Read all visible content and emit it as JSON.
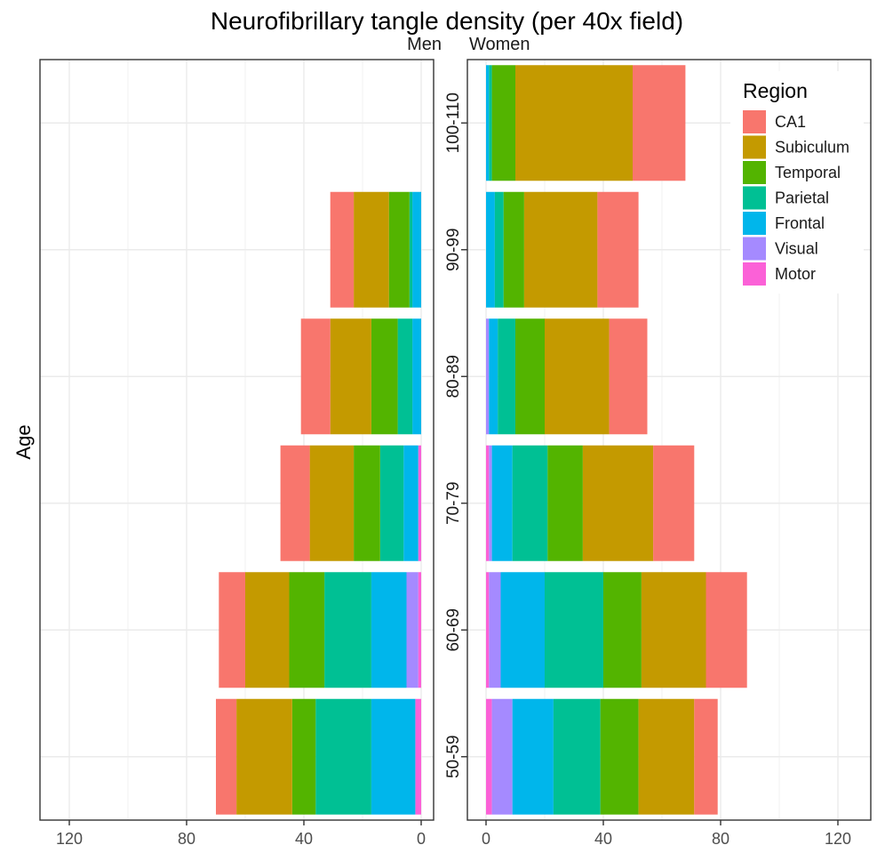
{
  "chart_data": {
    "type": "bar",
    "orientation": "horizontal-stacked-pyramid",
    "title": "Neurofibrillary tangle density (per 40x field)",
    "ylabel": "Age",
    "xlim": [
      0,
      130
    ],
    "xticks": [
      0,
      40,
      80,
      120
    ],
    "grid": true,
    "legend_position": "top-right inside Women panel",
    "legend_title": "Region",
    "categories": [
      "50-59",
      "60-69",
      "70-79",
      "80-89",
      "90-99",
      "100-110"
    ],
    "panels": [
      {
        "name": "Men",
        "direction": "left",
        "series": [
          {
            "name": "Motor",
            "values": [
              2,
              1,
              1,
              0,
              0,
              0
            ]
          },
          {
            "name": "Visual",
            "values": [
              0,
              4,
              0,
              0,
              0,
              0
            ]
          },
          {
            "name": "Frontal",
            "values": [
              15,
              12,
              5,
              3,
              3,
              0
            ]
          },
          {
            "name": "Parietal",
            "values": [
              19,
              16,
              8,
              5,
              1,
              0
            ]
          },
          {
            "name": "Temporal",
            "values": [
              8,
              12,
              9,
              9,
              7,
              0
            ]
          },
          {
            "name": "Subiculum",
            "values": [
              19,
              15,
              15,
              14,
              12,
              0
            ]
          },
          {
            "name": "CA1",
            "values": [
              7,
              9,
              10,
              10,
              8,
              0
            ]
          }
        ]
      },
      {
        "name": "Women",
        "direction": "right",
        "series": [
          {
            "name": "Motor",
            "values": [
              2,
              1,
              1,
              0,
              0,
              0
            ]
          },
          {
            "name": "Visual",
            "values": [
              7,
              4,
              1,
              1,
              0,
              0
            ]
          },
          {
            "name": "Frontal",
            "values": [
              14,
              15,
              7,
              3,
              3,
              1
            ]
          },
          {
            "name": "Parietal",
            "values": [
              16,
              20,
              12,
              6,
              3,
              1
            ]
          },
          {
            "name": "Temporal",
            "values": [
              13,
              13,
              12,
              10,
              7,
              8
            ]
          },
          {
            "name": "Subiculum",
            "values": [
              19,
              22,
              24,
              22,
              25,
              40
            ]
          },
          {
            "name": "CA1",
            "values": [
              8,
              14,
              14,
              13,
              14,
              18
            ]
          }
        ]
      }
    ],
    "legend_order": [
      "CA1",
      "Subiculum",
      "Temporal",
      "Parietal",
      "Frontal",
      "Visual",
      "Motor"
    ],
    "colors": {
      "CA1": "#F8766D",
      "Subiculum": "#C49A00",
      "Temporal": "#53B400",
      "Parietal": "#00C094",
      "Frontal": "#00B6EB",
      "Visual": "#A58AFF",
      "Motor": "#FB61D7"
    }
  }
}
